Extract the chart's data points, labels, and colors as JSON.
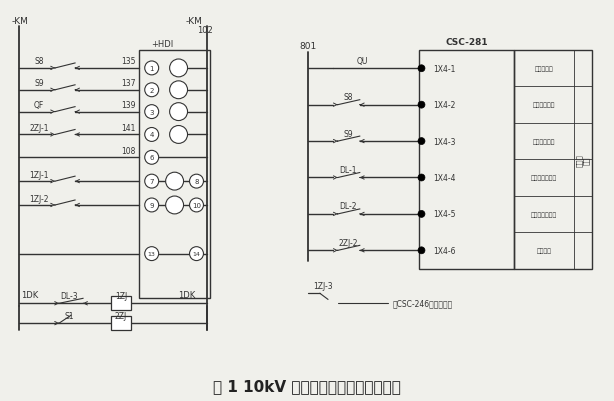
{
  "title": "图 1 10kV 进线断路器状态信号接线图",
  "title_color": "#222222",
  "title_fontsize": 11,
  "bg_color": "#f0f0eb",
  "line_color": "#333333",
  "label_fontsize": 6.5,
  "label_color": "#333333",
  "switch_labels_left": [
    "S8",
    "S9",
    "QF",
    "2ZJ-1"
  ],
  "switch_numbers_left": [
    "135",
    "137",
    "139",
    "141"
  ],
  "switch_number_108": "108",
  "relay_labels": [
    "1ZJ-1",
    "1ZJ-2"
  ],
  "right_box_label": "CSC-281",
  "right_terminals": [
    "1X4-1",
    "1X4-2",
    "1X4-3",
    "1X4-4",
    "1X4-5",
    "1X4-6"
  ],
  "right_input_labels": [
    "储水方位置",
    "后生试验位置",
    "后车上生位置",
    "换缘器分闸位置",
    "换缘器合闸位置",
    "辅助锁柱"
  ],
  "right_switch_labels": [
    "QU",
    "S8",
    "S9",
    "DL-1",
    "DL-2",
    "2ZJ-2"
  ],
  "right_box_label2": "开关量输入",
  "right_top_label": "801",
  "bottom_labels": [
    "1DK",
    "1DK"
  ],
  "bottom_relay_labels": [
    "DL-3",
    "S1"
  ],
  "bottom_relay_names": [
    "1ZJ",
    "2ZJ"
  ],
  "bottom_right_label": "1ZJ-3",
  "bottom_right_text": "至CSC-246备自投装置"
}
